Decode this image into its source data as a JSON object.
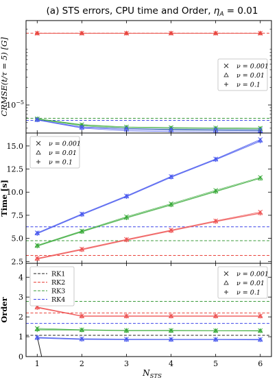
{
  "figure": {
    "title_text": "(a) STS errors, CPU time and Order, ",
    "title_eta": "η",
    "title_sub": "A",
    "title_tail": " = 0.01",
    "xlabel_main": "N",
    "xlabel_sub": "STS"
  },
  "colors": {
    "RK1": "#222222",
    "RK2": "#e8413a",
    "RK3": "#3a9a3a",
    "RK4": "#3a44e8",
    "STS_green": "#3aaa3a",
    "STS_blue": "#4a5aee",
    "STS_red": "#ee5555"
  },
  "chart_data": [
    {
      "type": "line",
      "name": "errors",
      "ylabel": "CRMSE(t/τ = 5) [G]",
      "y_scale": "log",
      "ytick_label": "10",
      "ytick_exp": "−5",
      "ytick_value": 1e-05,
      "ylim": [
        3.3e-06,
        0.00028
      ],
      "xlim": [
        0.75,
        6.25
      ],
      "x": [
        1,
        2,
        3,
        4,
        5,
        6
      ],
      "hlines": [
        {
          "name": "RK2",
          "color": "RK2",
          "value": 0.00017
        },
        {
          "name": "RK3",
          "color": "RK3",
          "value": 5.9e-06
        },
        {
          "name": "RK4",
          "color": "RK4",
          "value": 5.45e-06
        }
      ],
      "series": [
        {
          "color": "RK2",
          "marker": "x",
          "values": [
            0.00017,
            0.00017,
            0.00017,
            0.00017,
            0.00017,
            0.00017
          ]
        },
        {
          "color": "RK2",
          "marker": "^",
          "values": [
            0.00017,
            0.00017,
            0.00017,
            0.00017,
            0.00017,
            0.00017
          ]
        },
        {
          "color": "RK2",
          "marker": "+",
          "values": [
            0.00017,
            0.00017,
            0.00017,
            0.00017,
            0.00017,
            0.00017
          ]
        },
        {
          "color": "STS_green",
          "marker": "x",
          "values": [
            5.8e-06,
            4.6e-06,
            4.2e-06,
            4.1e-06,
            4.05e-06,
            4e-06
          ]
        },
        {
          "color": "STS_green",
          "marker": "^",
          "values": [
            5.75e-06,
            4.5e-06,
            4.1e-06,
            4e-06,
            3.95e-06,
            3.9e-06
          ]
        },
        {
          "color": "STS_green",
          "marker": "+",
          "values": [
            5.7e-06,
            4.4e-06,
            3.95e-06,
            3.8e-06,
            3.75e-06,
            3.7e-06
          ]
        },
        {
          "color": "STS_blue",
          "marker": "x",
          "values": [
            5.6e-06,
            4.2e-06,
            3.95e-06,
            3.85e-06,
            3.8e-06,
            3.75e-06
          ]
        },
        {
          "color": "STS_blue",
          "marker": "^",
          "values": [
            5.55e-06,
            4.1e-06,
            3.8e-06,
            3.7e-06,
            3.65e-06,
            3.6e-06
          ]
        },
        {
          "color": "STS_blue",
          "marker": "+",
          "values": [
            5.5e-06,
            4e-06,
            3.6e-06,
            3.5e-06,
            3.45e-06,
            3.45e-06
          ]
        }
      ],
      "legend": {
        "position": "right",
        "entries": [
          {
            "marker": "x",
            "label": "ν = 0.001"
          },
          {
            "marker": "^",
            "label": "ν = 0.01"
          },
          {
            "marker": "+",
            "label": "ν = 0.1"
          }
        ]
      }
    },
    {
      "type": "line",
      "name": "time",
      "ylabel": "Time [s]",
      "ylim": [
        2.3,
        16.4
      ],
      "xlim": [
        0.75,
        6.25
      ],
      "yticks": [
        2.5,
        5.0,
        7.5,
        10.0,
        12.5,
        15.0
      ],
      "ytick_labels": [
        "2.5",
        "5.0",
        "7.5",
        "10.0",
        "12.5",
        "15.0"
      ],
      "x": [
        1,
        2,
        3,
        4,
        5,
        6
      ],
      "hlines": [
        {
          "name": "RK2",
          "color": "RK2",
          "value": 3.15
        },
        {
          "name": "RK3",
          "color": "RK3",
          "value": 4.75
        },
        {
          "name": "RK4",
          "color": "RK4",
          "value": 6.25
        }
      ],
      "series": [
        {
          "color": "STS_red",
          "marker": "x",
          "values": [
            2.85,
            3.85,
            4.9,
            5.9,
            6.9,
            7.85
          ]
        },
        {
          "color": "STS_red",
          "marker": "^",
          "values": [
            2.8,
            3.8,
            4.85,
            5.85,
            6.85,
            7.75
          ]
        },
        {
          "color": "STS_red",
          "marker": "+",
          "values": [
            2.75,
            3.75,
            4.8,
            5.8,
            6.8,
            7.7
          ]
        },
        {
          "color": "STS_green",
          "marker": "x",
          "values": [
            4.25,
            5.8,
            7.35,
            8.75,
            10.2,
            11.6
          ]
        },
        {
          "color": "STS_green",
          "marker": "^",
          "values": [
            4.2,
            5.75,
            7.25,
            8.65,
            10.1,
            11.5
          ]
        },
        {
          "color": "STS_green",
          "marker": "+",
          "values": [
            4.15,
            5.7,
            7.2,
            8.6,
            10.05,
            11.5
          ]
        },
        {
          "color": "STS_blue",
          "marker": "x",
          "values": [
            5.6,
            7.65,
            9.6,
            11.7,
            13.6,
            15.7
          ]
        },
        {
          "color": "STS_blue",
          "marker": "^",
          "values": [
            5.55,
            7.6,
            9.55,
            11.65,
            13.55,
            15.6
          ]
        },
        {
          "color": "STS_blue",
          "marker": "+",
          "values": [
            5.5,
            7.55,
            9.5,
            11.6,
            13.5,
            15.5
          ]
        }
      ],
      "legend": {
        "position": "top-left",
        "entries": [
          {
            "marker": "x",
            "label": "ν = 0.001"
          },
          {
            "marker": "^",
            "label": "ν = 0.01"
          },
          {
            "marker": "+",
            "label": "ν = 0.1"
          }
        ]
      }
    },
    {
      "type": "line",
      "name": "order",
      "ylabel": "Order",
      "ylim": [
        0,
        4.7
      ],
      "xlim": [
        0.75,
        6.25
      ],
      "yticks": [
        0,
        1,
        2,
        3,
        4
      ],
      "ytick_labels": [
        "0",
        "1",
        "2",
        "3",
        "4"
      ],
      "x": [
        1,
        2,
        3,
        4,
        5,
        6
      ],
      "xticks": [
        1,
        2,
        3,
        4,
        5,
        6
      ],
      "xtick_labels": [
        "1",
        "2",
        "3",
        "4",
        "5",
        "6"
      ],
      "hlines": [
        {
          "name": "RK1",
          "color": "RK1",
          "value": 1.07
        },
        {
          "name": "RK2",
          "color": "RK2",
          "value": 2.2
        },
        {
          "name": "RK3",
          "color": "RK3",
          "value": 2.78
        },
        {
          "name": "RK4",
          "color": "RK4",
          "value": 1.67
        }
      ],
      "series": [
        {
          "color": "STS_red",
          "marker": "x",
          "values": [
            2.5,
            2.05,
            2.05,
            2.05,
            2.05,
            2.05
          ]
        },
        {
          "color": "STS_red",
          "marker": "^",
          "values": [
            2.48,
            2.04,
            2.04,
            2.04,
            2.04,
            2.04
          ]
        },
        {
          "color": "STS_red",
          "marker": "+",
          "values": [
            2.46,
            2.03,
            2.03,
            2.03,
            2.03,
            2.03
          ]
        },
        {
          "color": "STS_green",
          "marker": "x",
          "values": [
            1.42,
            1.35,
            1.32,
            1.32,
            1.31,
            1.31
          ]
        },
        {
          "color": "STS_green",
          "marker": "^",
          "values": [
            1.38,
            1.34,
            1.31,
            1.31,
            1.3,
            1.3
          ]
        },
        {
          "color": "STS_green",
          "marker": "+",
          "values": [
            1.34,
            1.33,
            1.3,
            1.3,
            1.3,
            1.29
          ]
        },
        {
          "color": "STS_blue",
          "marker": "x",
          "values": [
            0.97,
            0.9,
            0.88,
            0.87,
            0.87,
            0.87
          ]
        },
        {
          "color": "STS_blue",
          "marker": "^",
          "values": [
            0.95,
            0.88,
            0.86,
            0.86,
            0.86,
            0.85
          ]
        },
        {
          "color": "STS_blue",
          "marker": "+",
          "values": [
            0.93,
            0.86,
            0.85,
            0.85,
            0.85,
            0.84
          ]
        }
      ],
      "drop_line": {
        "color": "RK1",
        "x": [
          1.0,
          1.1
        ],
        "y": [
          1.0,
          0.0
        ]
      },
      "legend_methods": {
        "position": "top-left",
        "entries": [
          {
            "color": "RK1",
            "label": "RK1"
          },
          {
            "color": "RK2",
            "label": "RK2"
          },
          {
            "color": "RK3",
            "label": "RK3"
          },
          {
            "color": "RK4",
            "label": "RK4"
          }
        ]
      },
      "legend": {
        "position": "top-right",
        "entries": [
          {
            "marker": "x",
            "label": "ν = 0.001"
          },
          {
            "marker": "^",
            "label": "ν = 0.01"
          },
          {
            "marker": "+",
            "label": "ν = 0.1"
          }
        ]
      }
    }
  ]
}
